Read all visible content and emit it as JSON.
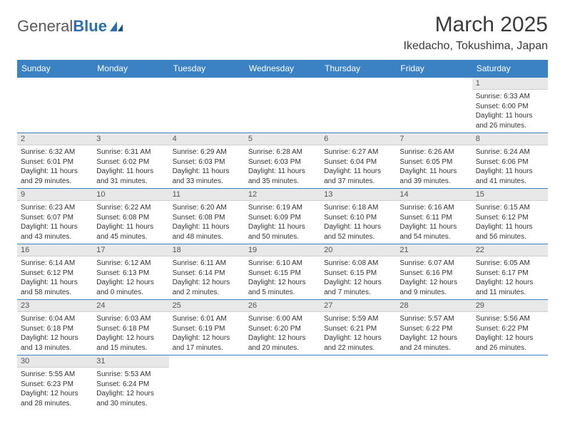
{
  "logo": {
    "text1": "General",
    "text2": "Blue"
  },
  "title": "March 2025",
  "location": "Ikedacho, Tokushima, Japan",
  "colors": {
    "header_bg": "#3b82c4",
    "header_text": "#ffffff",
    "daynum_bg": "#e8e8e8",
    "border": "#3b82c4",
    "logo_gray": "#5a5a5a",
    "logo_blue": "#2c6fb0"
  },
  "weekdays": [
    "Sunday",
    "Monday",
    "Tuesday",
    "Wednesday",
    "Thursday",
    "Friday",
    "Saturday"
  ],
  "weeks": [
    [
      null,
      null,
      null,
      null,
      null,
      null,
      {
        "n": "1",
        "sr": "Sunrise: 6:33 AM",
        "ss": "Sunset: 6:00 PM",
        "dl": "Daylight: 11 hours and 26 minutes."
      }
    ],
    [
      {
        "n": "2",
        "sr": "Sunrise: 6:32 AM",
        "ss": "Sunset: 6:01 PM",
        "dl": "Daylight: 11 hours and 29 minutes."
      },
      {
        "n": "3",
        "sr": "Sunrise: 6:31 AM",
        "ss": "Sunset: 6:02 PM",
        "dl": "Daylight: 11 hours and 31 minutes."
      },
      {
        "n": "4",
        "sr": "Sunrise: 6:29 AM",
        "ss": "Sunset: 6:03 PM",
        "dl": "Daylight: 11 hours and 33 minutes."
      },
      {
        "n": "5",
        "sr": "Sunrise: 6:28 AM",
        "ss": "Sunset: 6:03 PM",
        "dl": "Daylight: 11 hours and 35 minutes."
      },
      {
        "n": "6",
        "sr": "Sunrise: 6:27 AM",
        "ss": "Sunset: 6:04 PM",
        "dl": "Daylight: 11 hours and 37 minutes."
      },
      {
        "n": "7",
        "sr": "Sunrise: 6:26 AM",
        "ss": "Sunset: 6:05 PM",
        "dl": "Daylight: 11 hours and 39 minutes."
      },
      {
        "n": "8",
        "sr": "Sunrise: 6:24 AM",
        "ss": "Sunset: 6:06 PM",
        "dl": "Daylight: 11 hours and 41 minutes."
      }
    ],
    [
      {
        "n": "9",
        "sr": "Sunrise: 6:23 AM",
        "ss": "Sunset: 6:07 PM",
        "dl": "Daylight: 11 hours and 43 minutes."
      },
      {
        "n": "10",
        "sr": "Sunrise: 6:22 AM",
        "ss": "Sunset: 6:08 PM",
        "dl": "Daylight: 11 hours and 45 minutes."
      },
      {
        "n": "11",
        "sr": "Sunrise: 6:20 AM",
        "ss": "Sunset: 6:08 PM",
        "dl": "Daylight: 11 hours and 48 minutes."
      },
      {
        "n": "12",
        "sr": "Sunrise: 6:19 AM",
        "ss": "Sunset: 6:09 PM",
        "dl": "Daylight: 11 hours and 50 minutes."
      },
      {
        "n": "13",
        "sr": "Sunrise: 6:18 AM",
        "ss": "Sunset: 6:10 PM",
        "dl": "Daylight: 11 hours and 52 minutes."
      },
      {
        "n": "14",
        "sr": "Sunrise: 6:16 AM",
        "ss": "Sunset: 6:11 PM",
        "dl": "Daylight: 11 hours and 54 minutes."
      },
      {
        "n": "15",
        "sr": "Sunrise: 6:15 AM",
        "ss": "Sunset: 6:12 PM",
        "dl": "Daylight: 11 hours and 56 minutes."
      }
    ],
    [
      {
        "n": "16",
        "sr": "Sunrise: 6:14 AM",
        "ss": "Sunset: 6:12 PM",
        "dl": "Daylight: 11 hours and 58 minutes."
      },
      {
        "n": "17",
        "sr": "Sunrise: 6:12 AM",
        "ss": "Sunset: 6:13 PM",
        "dl": "Daylight: 12 hours and 0 minutes."
      },
      {
        "n": "18",
        "sr": "Sunrise: 6:11 AM",
        "ss": "Sunset: 6:14 PM",
        "dl": "Daylight: 12 hours and 2 minutes."
      },
      {
        "n": "19",
        "sr": "Sunrise: 6:10 AM",
        "ss": "Sunset: 6:15 PM",
        "dl": "Daylight: 12 hours and 5 minutes."
      },
      {
        "n": "20",
        "sr": "Sunrise: 6:08 AM",
        "ss": "Sunset: 6:15 PM",
        "dl": "Daylight: 12 hours and 7 minutes."
      },
      {
        "n": "21",
        "sr": "Sunrise: 6:07 AM",
        "ss": "Sunset: 6:16 PM",
        "dl": "Daylight: 12 hours and 9 minutes."
      },
      {
        "n": "22",
        "sr": "Sunrise: 6:05 AM",
        "ss": "Sunset: 6:17 PM",
        "dl": "Daylight: 12 hours and 11 minutes."
      }
    ],
    [
      {
        "n": "23",
        "sr": "Sunrise: 6:04 AM",
        "ss": "Sunset: 6:18 PM",
        "dl": "Daylight: 12 hours and 13 minutes."
      },
      {
        "n": "24",
        "sr": "Sunrise: 6:03 AM",
        "ss": "Sunset: 6:18 PM",
        "dl": "Daylight: 12 hours and 15 minutes."
      },
      {
        "n": "25",
        "sr": "Sunrise: 6:01 AM",
        "ss": "Sunset: 6:19 PM",
        "dl": "Daylight: 12 hours and 17 minutes."
      },
      {
        "n": "26",
        "sr": "Sunrise: 6:00 AM",
        "ss": "Sunset: 6:20 PM",
        "dl": "Daylight: 12 hours and 20 minutes."
      },
      {
        "n": "27",
        "sr": "Sunrise: 5:59 AM",
        "ss": "Sunset: 6:21 PM",
        "dl": "Daylight: 12 hours and 22 minutes."
      },
      {
        "n": "28",
        "sr": "Sunrise: 5:57 AM",
        "ss": "Sunset: 6:22 PM",
        "dl": "Daylight: 12 hours and 24 minutes."
      },
      {
        "n": "29",
        "sr": "Sunrise: 5:56 AM",
        "ss": "Sunset: 6:22 PM",
        "dl": "Daylight: 12 hours and 26 minutes."
      }
    ],
    [
      {
        "n": "30",
        "sr": "Sunrise: 5:55 AM",
        "ss": "Sunset: 6:23 PM",
        "dl": "Daylight: 12 hours and 28 minutes."
      },
      {
        "n": "31",
        "sr": "Sunrise: 5:53 AM",
        "ss": "Sunset: 6:24 PM",
        "dl": "Daylight: 12 hours and 30 minutes."
      },
      null,
      null,
      null,
      null,
      null
    ]
  ]
}
